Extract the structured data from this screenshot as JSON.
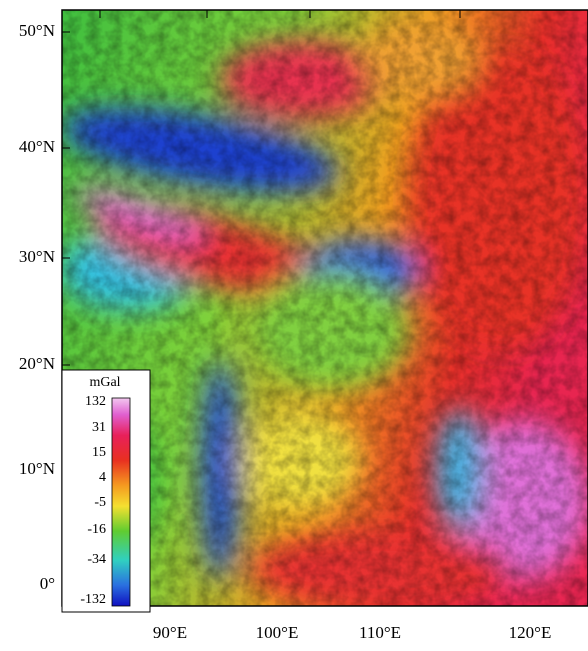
{
  "map": {
    "lat_labels": [
      "50°N",
      "40°N",
      "30°N",
      "20°N",
      "10°N",
      "0°"
    ],
    "lon_labels": [
      "90°E",
      "100°E",
      "110°E",
      "120°E"
    ],
    "colorbar": {
      "unit": "mGal",
      "labels": [
        132,
        31,
        15,
        4,
        -5,
        -16,
        -34,
        -132
      ]
    }
  }
}
